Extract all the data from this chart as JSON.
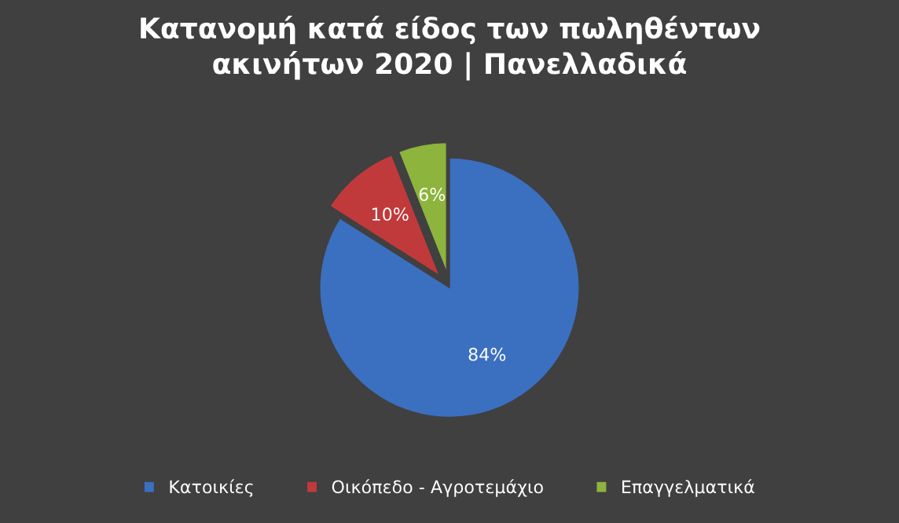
{
  "chart_data": {
    "type": "pie",
    "title": "Κατανομή κατά είδος των πωληθέντων\nακινήτων 2020 | Πανελλαδικά",
    "categories": [
      "Κατοικίες",
      "Οικόπεδο - Αγροτεμάχιο",
      "Επαγγελματικά"
    ],
    "values": [
      84,
      10,
      6
    ],
    "colors": [
      "#3b6fc0",
      "#c0393b",
      "#8db43c"
    ],
    "value_labels": [
      "84%",
      "10%",
      "6%"
    ],
    "legend": "bottom"
  }
}
